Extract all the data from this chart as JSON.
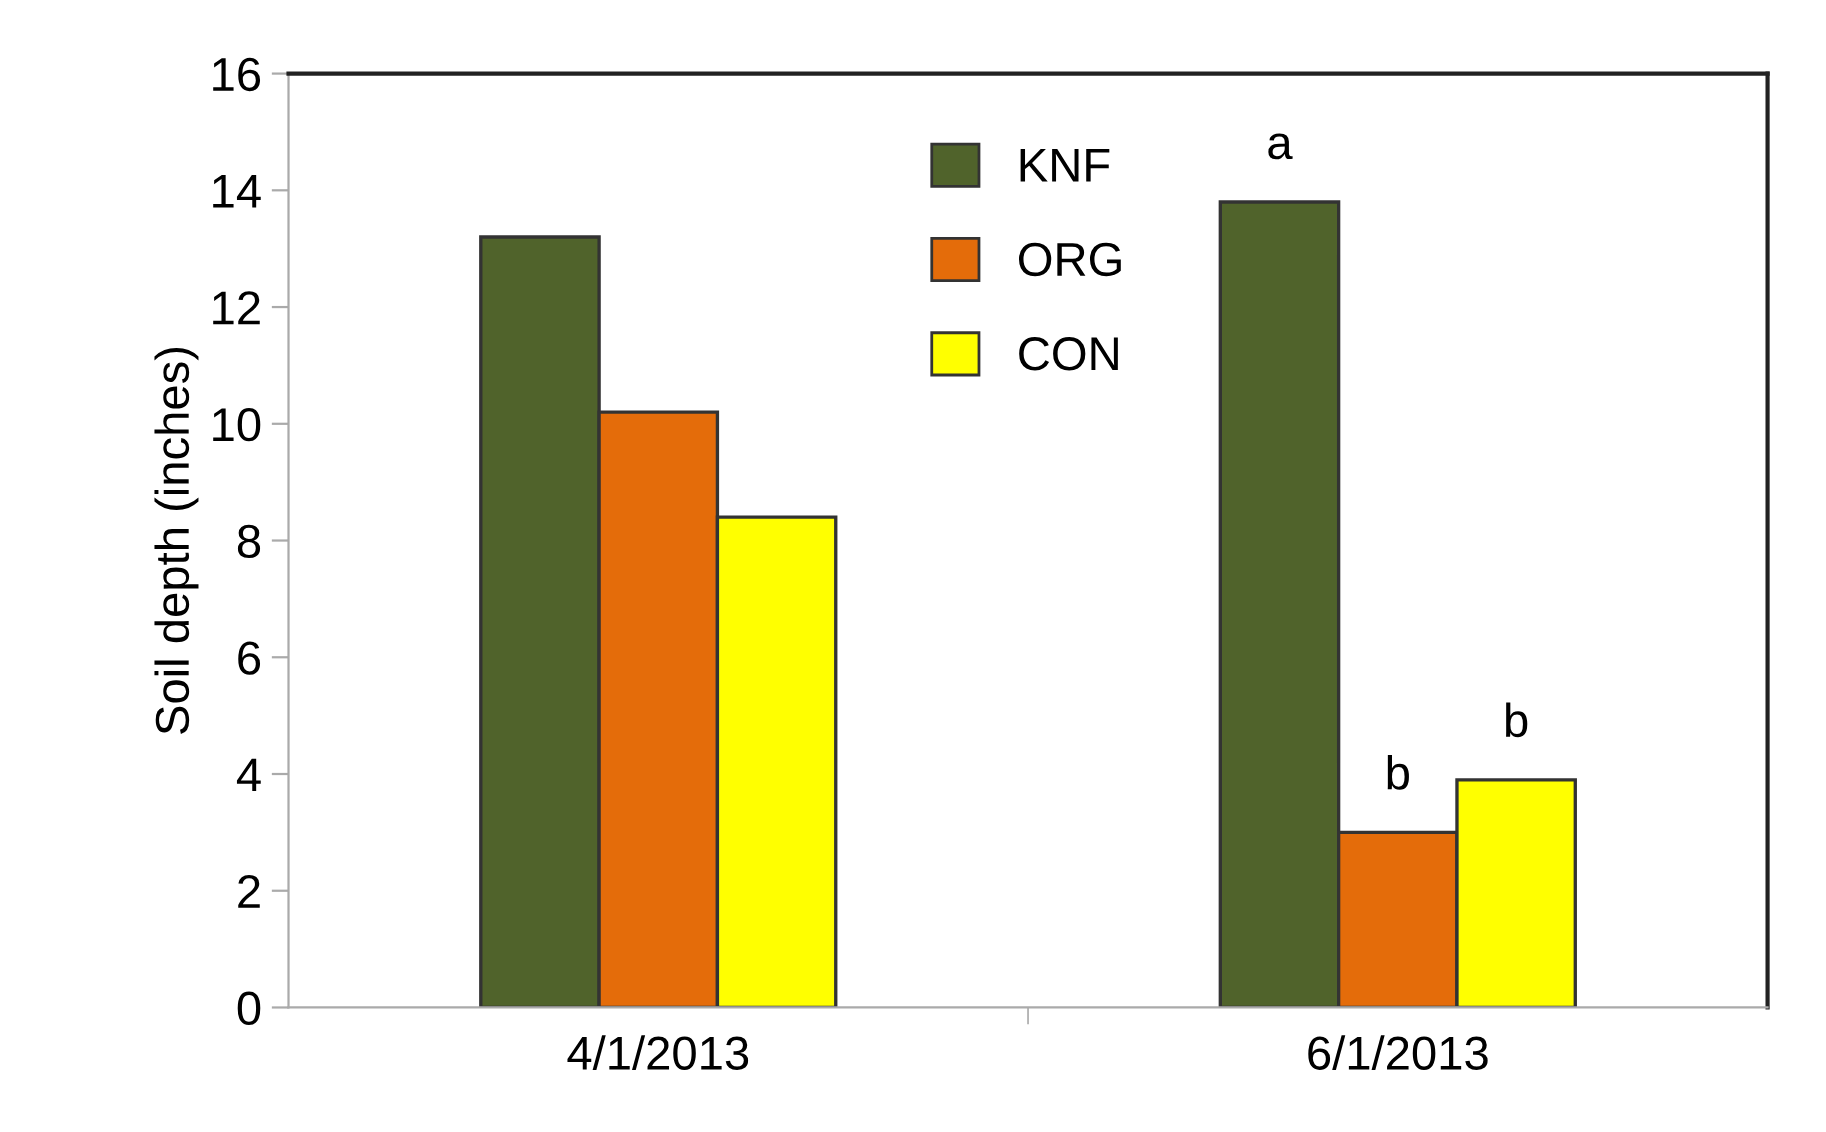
{
  "chart_data": {
    "type": "bar",
    "ylabel": "Soil depth (inches)",
    "categories": [
      "4/1/2013",
      "6/1/2013"
    ],
    "series": [
      {
        "name": "KNF",
        "color": "#50632b",
        "values": [
          13.2,
          13.8
        ]
      },
      {
        "name": "ORG",
        "color": "#e46c0a",
        "values": [
          10.2,
          3.0
        ]
      },
      {
        "name": "CON",
        "color": "#ffff00",
        "values": [
          8.4,
          3.9
        ]
      }
    ],
    "annotations": [
      "a",
      "b",
      "b"
    ],
    "ylim": [
      0,
      16
    ],
    "yticks": [
      0,
      2,
      4,
      6,
      8,
      10,
      12,
      14,
      16
    ],
    "grid": false,
    "legend": "top"
  }
}
